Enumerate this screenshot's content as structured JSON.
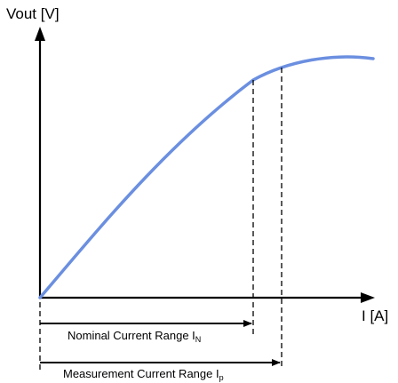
{
  "diagram": {
    "y_axis_label": "Vout [V]",
    "x_axis_label": "I [A]",
    "nominal_range": {
      "label_main": "Nominal Current Range I",
      "label_sub": "N"
    },
    "measurement_range": {
      "label_main": "Measurement Current Range  I",
      "label_sub": "p"
    }
  },
  "colors": {
    "curve": "#6b8fe0",
    "axes": "#000000",
    "dashed": "#000000",
    "background": "#ffffff"
  }
}
